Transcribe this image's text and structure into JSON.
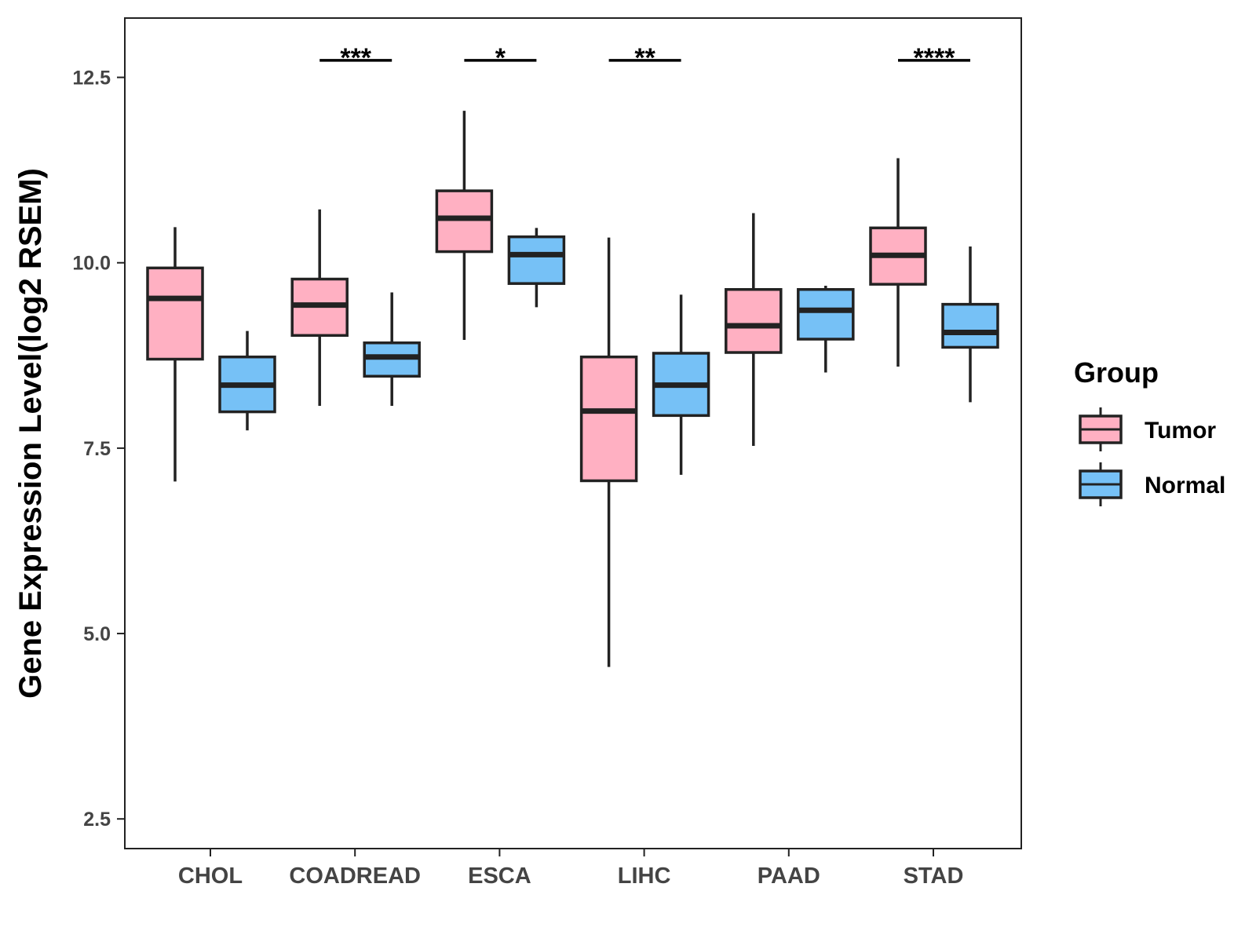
{
  "colors": {
    "tumor": "#FFB0C2",
    "normal": "#76C1F6",
    "stroke": "#222222",
    "panel_border": "#222222"
  },
  "chart_data": {
    "type": "boxplot",
    "title": "",
    "xlabel": "",
    "ylabel": "Gene Expression Level(log2 RSEM)",
    "ylim": [
      2.1,
      13.3
    ],
    "yticks": [
      2.5,
      5.0,
      7.5,
      10.0,
      12.5
    ],
    "ytick_labels": [
      "2.5",
      "5.0",
      "7.5",
      "10.0",
      "12.5"
    ],
    "grid": false,
    "categories": [
      "CHOL",
      "COADREAD",
      "ESCA",
      "LIHC",
      "PAAD",
      "STAD"
    ],
    "legend": {
      "title": "Group",
      "position": "right",
      "entries": [
        "Tumor",
        "Normal"
      ]
    },
    "series": [
      {
        "name": "Tumor",
        "boxes": [
          {
            "whisker_low": 7.05,
            "q1": 8.7,
            "median": 9.52,
            "q3": 9.93,
            "whisker_high": 10.48
          },
          {
            "whisker_low": 8.07,
            "q1": 9.02,
            "median": 9.43,
            "q3": 9.78,
            "whisker_high": 10.72
          },
          {
            "whisker_low": 8.96,
            "q1": 10.15,
            "median": 10.6,
            "q3": 10.97,
            "whisker_high": 12.05
          },
          {
            "whisker_low": 4.55,
            "q1": 7.06,
            "median": 8.0,
            "q3": 8.73,
            "whisker_high": 10.34
          },
          {
            "whisker_low": 7.53,
            "q1": 8.79,
            "median": 9.15,
            "q3": 9.64,
            "whisker_high": 10.67
          },
          {
            "whisker_low": 8.6,
            "q1": 9.71,
            "median": 10.1,
            "q3": 10.47,
            "whisker_high": 11.41
          }
        ]
      },
      {
        "name": "Normal",
        "boxes": [
          {
            "whisker_low": 7.74,
            "q1": 7.99,
            "median": 8.35,
            "q3": 8.73,
            "whisker_high": 9.08
          },
          {
            "whisker_low": 8.07,
            "q1": 8.47,
            "median": 8.73,
            "q3": 8.92,
            "whisker_high": 9.6
          },
          {
            "whisker_low": 9.4,
            "q1": 9.72,
            "median": 10.11,
            "q3": 10.35,
            "whisker_high": 10.47
          },
          {
            "whisker_low": 7.14,
            "q1": 7.94,
            "median": 8.35,
            "q3": 8.78,
            "whisker_high": 9.57
          },
          {
            "whisker_low": 8.52,
            "q1": 8.97,
            "median": 9.36,
            "q3": 9.64,
            "whisker_high": 9.69
          },
          {
            "whisker_low": 8.12,
            "q1": 8.86,
            "median": 9.06,
            "q3": 9.44,
            "whisker_high": 10.22
          }
        ]
      }
    ],
    "annotations": [
      {
        "category": "COADREAD",
        "label": "***",
        "y": 12.73
      },
      {
        "category": "ESCA",
        "label": "*",
        "y": 12.73
      },
      {
        "category": "LIHC",
        "label": "**",
        "y": 12.73
      },
      {
        "category": "STAD",
        "label": "****",
        "y": 12.73
      }
    ]
  }
}
